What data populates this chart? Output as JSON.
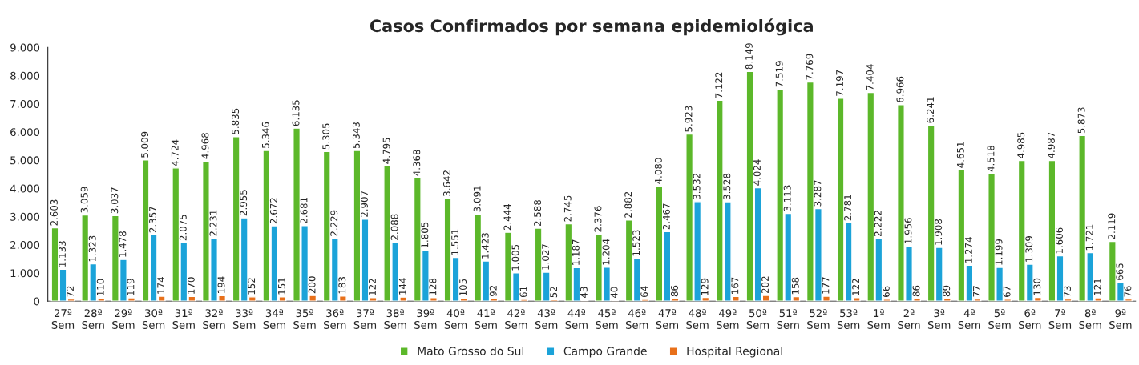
{
  "chart_data": {
    "type": "bar",
    "title": "Casos Confirmados por semana epidemiológica",
    "categories": [
      "27ª\nSem",
      "28ª\nSem",
      "29ª\nSem",
      "30ª\nSem",
      "31ª\nSem",
      "32ª\nSem",
      "33ª\nSem",
      "34ª\nSem",
      "35ª\nSem",
      "36ª\nSem",
      "37ª\nSem",
      "38ª\nSem",
      "39ª\nSem",
      "40ª\nSem",
      "41ª\nSem",
      "42ª\nSem",
      "43ª\nSem",
      "44ª\nSem",
      "45ª\nSem",
      "46ª\nSem",
      "47ª\nSem",
      "48ª\nSem",
      "49ª\nSem",
      "50ª\nSem",
      "51ª\nSem",
      "52ª\nSem",
      "53ª\nSem",
      "1ª\nSem",
      "2ª\nSem",
      "3ª\nSem",
      "4ª\nSem",
      "5ª\nSem",
      "6ª\nSem",
      "7ª\nSem",
      "8ª\nSem",
      "9ª\nSem"
    ],
    "series": [
      {
        "name": "Mato Grosso do Sul",
        "color": "#5cb82a",
        "values": [
          2603,
          3059,
          3037,
          5009,
          4724,
          4968,
          5835,
          5346,
          6135,
          5305,
          5343,
          4795,
          4368,
          3642,
          3091,
          2444,
          2588,
          2745,
          2376,
          2882,
          4080,
          5923,
          7122,
          8149,
          7519,
          7769,
          7197,
          7404,
          6966,
          6241,
          4651,
          4518,
          4985,
          4987,
          5873,
          2119
        ],
        "value_labels": [
          "2.603",
          "3.059",
          "3.037",
          "5.009",
          "4.724",
          "4.968",
          "5.835",
          "5.346",
          "6.135",
          "5.305",
          "5.343",
          "4.795",
          "4.368",
          "3.642",
          "3.091",
          "2.444",
          "2.588",
          "2.745",
          "2.376",
          "2.882",
          "4.080",
          "5.923",
          "7.122",
          "8.149",
          "7.519",
          "7.769",
          "7.197",
          "7.404",
          "6.966",
          "6.241",
          "4.651",
          "4.518",
          "4.985",
          "4.987",
          "5.873",
          "2.119"
        ]
      },
      {
        "name": "Campo Grande",
        "color": "#1ba3d9",
        "values": [
          1133,
          1323,
          1478,
          2357,
          2075,
          2231,
          2955,
          2672,
          2681,
          2229,
          2907,
          2088,
          1805,
          1551,
          1423,
          1005,
          1027,
          1187,
          1204,
          1523,
          2467,
          3532,
          3528,
          4024,
          3113,
          3287,
          2781,
          2222,
          1956,
          1908,
          1274,
          1199,
          1309,
          1606,
          1721,
          665
        ],
        "value_labels": [
          "1.133",
          "1.323",
          "1.478",
          "2.357",
          "2.075",
          "2.231",
          "2.955",
          "2.672",
          "2.681",
          "2.229",
          "2.907",
          "2.088",
          "1.805",
          "1.551",
          "1.423",
          "1.005",
          "1.027",
          "1.187",
          "1.204",
          "1.523",
          "2.467",
          "3.532",
          "3.528",
          "4.024",
          "3.113",
          "3.287",
          "2.781",
          "2.222",
          "1.956",
          "1.908",
          "1.274",
          "1.199",
          "1.309",
          "1.606",
          "1.721",
          "665"
        ]
      },
      {
        "name": "Hospital Regional",
        "color": "#e8701a",
        "values": [
          72,
          110,
          119,
          174,
          170,
          194,
          152,
          151,
          200,
          183,
          122,
          144,
          128,
          105,
          92,
          61,
          52,
          43,
          40,
          64,
          86,
          129,
          167,
          202,
          158,
          177,
          122,
          66,
          86,
          89,
          77,
          67,
          130,
          73,
          121,
          76
        ],
        "value_labels": [
          "72",
          "110",
          "119",
          "174",
          "170",
          "194",
          "152",
          "151",
          "200",
          "183",
          "122",
          "144",
          "128",
          "105",
          "92",
          "61",
          "52",
          "43",
          "40",
          "64",
          "86",
          "129",
          "167",
          "202",
          "158",
          "177",
          "122",
          "66",
          "86",
          "89",
          "77",
          "67",
          "130",
          "73",
          "121",
          "76"
        ]
      }
    ],
    "ylim": [
      0,
      9000
    ],
    "yticks": [
      {
        "value": 0,
        "label": "0"
      },
      {
        "value": 1000,
        "label": "1.000"
      },
      {
        "value": 2000,
        "label": "2.000"
      },
      {
        "value": 3000,
        "label": "3.000"
      },
      {
        "value": 4000,
        "label": "4.000"
      },
      {
        "value": 5000,
        "label": "5.000"
      },
      {
        "value": 6000,
        "label": "6.000"
      },
      {
        "value": 7000,
        "label": "7.000"
      },
      {
        "value": 8000,
        "label": "8.000"
      },
      {
        "value": 9000,
        "label": "9.000"
      }
    ],
    "grid": false,
    "legend": "bottom"
  }
}
